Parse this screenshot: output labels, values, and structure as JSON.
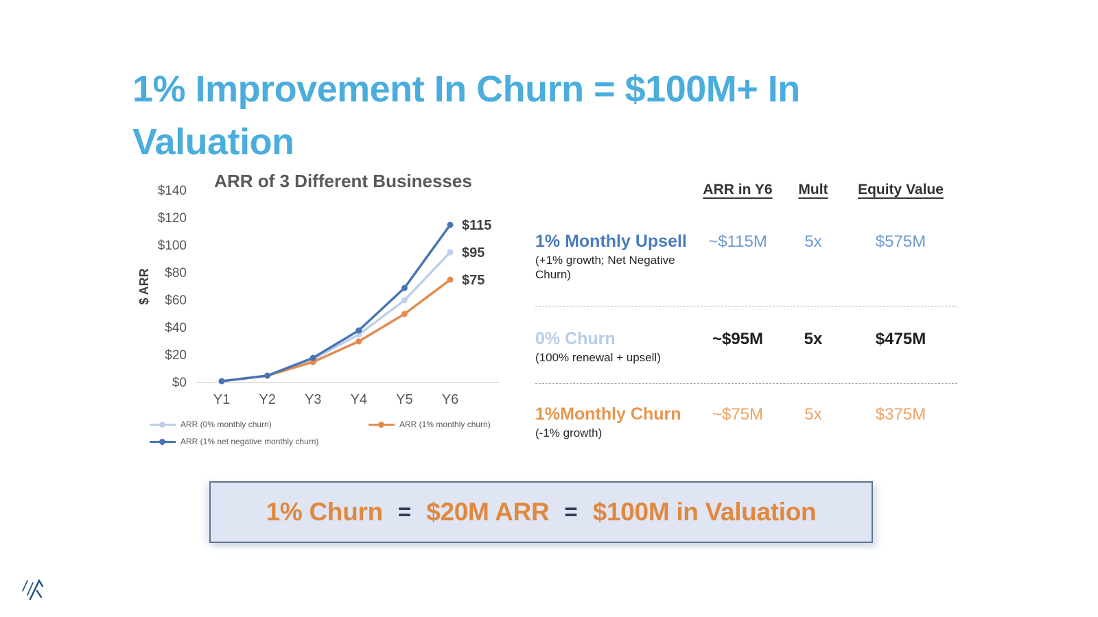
{
  "slide": {
    "title": "1% Improvement In Churn = $100M+ In Valuation",
    "title_color": "#4aaddc"
  },
  "chart_data": {
    "type": "line",
    "title": "ARR of 3 Different Businesses",
    "xlabel": "",
    "ylabel": "$ ARR",
    "categories": [
      "Y1",
      "Y2",
      "Y3",
      "Y4",
      "Y5",
      "Y6"
    ],
    "y_ticks": [
      "$0",
      "$20",
      "$40",
      "$60",
      "$80",
      "$100",
      "$120",
      "$140"
    ],
    "ylim": [
      0,
      140
    ],
    "grid": false,
    "legend_position": "bottom",
    "series": [
      {
        "name": "ARR (0% monthly churn)",
        "color": "#bdd0e9",
        "values": [
          1,
          5,
          17,
          35,
          60,
          95
        ],
        "end_label": "$95"
      },
      {
        "name": "ARR (1% monthly churn)",
        "color": "#e28b4d",
        "values": [
          1,
          5,
          15,
          30,
          50,
          75
        ],
        "end_label": "$75"
      },
      {
        "name": "ARR (1% net negative monthly churn)",
        "color": "#4874b4",
        "values": [
          1,
          5,
          18,
          38,
          69,
          115
        ],
        "end_label": "$115"
      }
    ]
  },
  "table": {
    "headers": {
      "arr": "ARR in Y6",
      "mult": "Mult",
      "equity": "Equity Value"
    },
    "rows": [
      {
        "label": "1% Monthly Upsell",
        "sublabel": "(+1% growth;  Net Negative Churn)",
        "arr": "~$115M",
        "mult": "5x",
        "equity": "$575M",
        "label_color": "#4a7cba",
        "value_color": "#6e9ad0"
      },
      {
        "label": "0% Churn",
        "sublabel": "(100% renewal + upsell)",
        "arr": "~$95M",
        "mult": "5x",
        "equity": "$475M",
        "label_color": "#b7cce8",
        "value_color": "#1f1f1f"
      },
      {
        "label": "1%Monthly Churn",
        "sublabel": "(-1% growth)",
        "arr": "~$75M",
        "mult": "5x",
        "equity": "$375M",
        "label_color": "#e8964d",
        "value_color": "#eda163"
      }
    ]
  },
  "callout": {
    "part1": "1% Churn",
    "eq1": "=",
    "part2": "$20M ARR",
    "eq2": "=",
    "part3": "$100M in Valuation",
    "text_color": "#e0883f",
    "background": "#dfe5f2",
    "border_color": "#5f7396"
  },
  "logo": {
    "name": "company-logo",
    "color": "#1c4e80"
  }
}
